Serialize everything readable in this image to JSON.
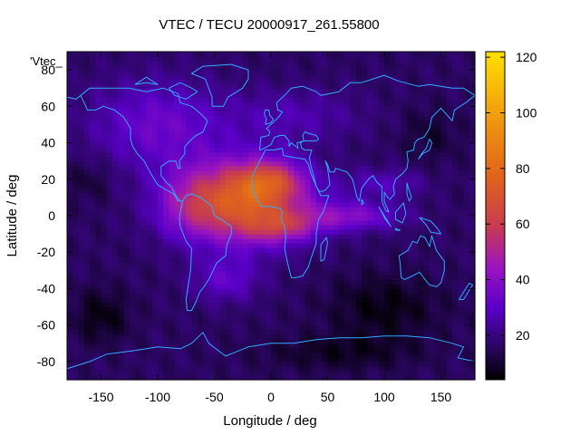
{
  "chart_data": {
    "type": "heatmap",
    "title": "VTEC / TECU 20000917_261.55800",
    "xlabel": "Longitude / deg",
    "ylabel": "Latitude / deg",
    "series_label": "'Vtec_",
    "xlim": [
      -180,
      180
    ],
    "ylim": [
      -90,
      90
    ],
    "x_ticks": [
      -150,
      -100,
      -50,
      0,
      50,
      100,
      150
    ],
    "y_ticks": [
      -80,
      -60,
      -40,
      -20,
      0,
      20,
      40,
      60,
      80
    ],
    "colorbar": {
      "range": [
        4,
        122
      ],
      "ticks": [
        20,
        40,
        60,
        80,
        100,
        120
      ],
      "palette": [
        "#000000",
        "#2a0660",
        "#5a00c8",
        "#9a14c0",
        "#c83c50",
        "#e0641a",
        "#f09a10",
        "#ffe000"
      ],
      "palette_positions": [
        0,
        0.1,
        0.22,
        0.34,
        0.47,
        0.62,
        0.8,
        1.0
      ]
    },
    "grid": {
      "lon_step": 5,
      "lat_step": 2.5
    },
    "coastline_color": "#33aaff",
    "field_model": {
      "base": 16,
      "anomalies": [
        {
          "lon": -25,
          "lat": 8,
          "dlon": 55,
          "dlat": 22,
          "amp": 58
        },
        {
          "lon": 0,
          "lat": 20,
          "dlon": 28,
          "dlat": 10,
          "amp": 25
        },
        {
          "lon": 10,
          "lat": -6,
          "dlon": 30,
          "dlat": 8,
          "amp": 20
        },
        {
          "lon": 70,
          "lat": 0,
          "dlon": 45,
          "dlat": 8,
          "amp": 22
        },
        {
          "lon": 100,
          "lat": 18,
          "dlon": 35,
          "dlat": 8,
          "amp": 12
        },
        {
          "lon": -40,
          "lat": -35,
          "dlon": 30,
          "dlat": 12,
          "amp": 15
        },
        {
          "lon": -75,
          "lat": 5,
          "dlon": 30,
          "dlat": 18,
          "amp": 12
        },
        {
          "lon": -100,
          "lat": 50,
          "dlon": 60,
          "dlat": 25,
          "amp": 18
        },
        {
          "lon": 20,
          "lat": 55,
          "dlon": 60,
          "dlat": 15,
          "amp": 10
        },
        {
          "lon": 100,
          "lat": -50,
          "dlon": 50,
          "dlat": 18,
          "amp": -10
        },
        {
          "lon": -150,
          "lat": -55,
          "dlon": 25,
          "dlat": 15,
          "amp": -10
        },
        {
          "lon": 140,
          "lat": 45,
          "dlon": 25,
          "dlat": 15,
          "amp": -6
        },
        {
          "lon": -160,
          "lat": 20,
          "dlon": 20,
          "dlat": 12,
          "amp": -6
        },
        {
          "lon": 60,
          "lat": -75,
          "dlon": 70,
          "dlat": 10,
          "amp": -8
        }
      ]
    },
    "coastlines": [
      [
        [
          -168,
          66
        ],
        [
          -160,
          70
        ],
        [
          -140,
          70
        ],
        [
          -125,
          70
        ],
        [
          -110,
          68
        ],
        [
          -95,
          70
        ],
        [
          -82,
          67
        ],
        [
          -80,
          62
        ],
        [
          -70,
          60
        ],
        [
          -62,
          56
        ],
        [
          -56,
          52
        ],
        [
          -60,
          46
        ],
        [
          -66,
          44
        ],
        [
          -70,
          42
        ],
        [
          -76,
          38
        ],
        [
          -76,
          34
        ],
        [
          -81,
          30
        ],
        [
          -80,
          26
        ],
        [
          -82,
          26
        ],
        [
          -84,
          30
        ],
        [
          -90,
          30
        ],
        [
          -97,
          27
        ],
        [
          -97,
          22
        ],
        [
          -92,
          18
        ],
        [
          -88,
          16
        ],
        [
          -84,
          11
        ],
        [
          -80,
          8
        ],
        [
          -78,
          8
        ],
        [
          -82,
          8
        ],
        [
          -86,
          12
        ],
        [
          -92,
          14
        ],
        [
          -100,
          17
        ],
        [
          -106,
          23
        ],
        [
          -112,
          30
        ],
        [
          -118,
          34
        ],
        [
          -122,
          38
        ],
        [
          -124,
          42
        ],
        [
          -124,
          48
        ],
        [
          -130,
          54
        ],
        [
          -138,
          58
        ],
        [
          -148,
          60
        ],
        [
          -155,
          58
        ],
        [
          -162,
          58
        ],
        [
          -165,
          62
        ],
        [
          -168,
          66
        ]
      ],
      [
        [
          -78,
          8
        ],
        [
          -75,
          11
        ],
        [
          -70,
          12
        ],
        [
          -62,
          10
        ],
        [
          -52,
          5
        ],
        [
          -50,
          0
        ],
        [
          -44,
          -2
        ],
        [
          -35,
          -6
        ],
        [
          -35,
          -10
        ],
        [
          -39,
          -16
        ],
        [
          -40,
          -22
        ],
        [
          -48,
          -26
        ],
        [
          -54,
          -34
        ],
        [
          -58,
          -38
        ],
        [
          -63,
          -42
        ],
        [
          -66,
          -47
        ],
        [
          -70,
          -52
        ],
        [
          -74,
          -52
        ],
        [
          -75,
          -46
        ],
        [
          -73,
          -38
        ],
        [
          -71,
          -30
        ],
        [
          -70,
          -18
        ],
        [
          -75,
          -14
        ],
        [
          -80,
          -6
        ],
        [
          -81,
          -2
        ],
        [
          -80,
          2
        ],
        [
          -78,
          8
        ]
      ],
      [
        [
          -17,
          21
        ],
        [
          -16,
          15
        ],
        [
          -13,
          9
        ],
        [
          -8,
          5
        ],
        [
          0,
          5
        ],
        [
          8,
          4
        ],
        [
          10,
          2
        ],
        [
          9,
          -2
        ],
        [
          12,
          -6
        ],
        [
          13,
          -12
        ],
        [
          12,
          -18
        ],
        [
          15,
          -27
        ],
        [
          18,
          -34
        ],
        [
          22,
          -34
        ],
        [
          28,
          -33
        ],
        [
          33,
          -28
        ],
        [
          35,
          -24
        ],
        [
          40,
          -15
        ],
        [
          40,
          -10
        ],
        [
          42,
          -2
        ],
        [
          46,
          2
        ],
        [
          51,
          11
        ],
        [
          44,
          11
        ],
        [
          40,
          16
        ],
        [
          36,
          22
        ],
        [
          33,
          28
        ],
        [
          30,
          31
        ],
        [
          20,
          32
        ],
        [
          11,
          33
        ],
        [
          10,
          37
        ],
        [
          2,
          36
        ],
        [
          -5,
          36
        ],
        [
          -10,
          30
        ],
        [
          -17,
          21
        ]
      ],
      [
        [
          -10,
          36
        ],
        [
          -9,
          43
        ],
        [
          -2,
          44
        ],
        [
          -1,
          46
        ],
        [
          -4,
          48
        ],
        [
          0,
          50
        ],
        [
          5,
          53
        ],
        [
          8,
          55
        ],
        [
          10,
          57
        ],
        [
          6,
          58
        ],
        [
          5,
          62
        ],
        [
          12,
          66
        ],
        [
          18,
          70
        ],
        [
          28,
          71
        ],
        [
          40,
          68
        ],
        [
          44,
          66
        ],
        [
          60,
          68
        ],
        [
          70,
          73
        ],
        [
          80,
          73
        ],
        [
          100,
          77
        ],
        [
          112,
          74
        ],
        [
          130,
          71
        ],
        [
          140,
          72
        ],
        [
          160,
          70
        ],
        [
          170,
          70
        ],
        [
          180,
          66
        ],
        [
          172,
          62
        ],
        [
          162,
          58
        ],
        [
          160,
          52
        ],
        [
          150,
          59
        ],
        [
          142,
          54
        ],
        [
          140,
          48
        ],
        [
          135,
          43
        ],
        [
          130,
          42
        ],
        [
          127,
          40
        ],
        [
          126,
          36
        ],
        [
          120,
          35
        ],
        [
          121,
          30
        ],
        [
          120,
          26
        ],
        [
          116,
          23
        ],
        [
          110,
          20
        ],
        [
          108,
          16
        ],
        [
          109,
          12
        ],
        [
          105,
          9
        ],
        [
          103,
          10
        ],
        [
          100,
          13
        ],
        [
          100,
          8
        ],
        [
          104,
          2
        ],
        [
          101,
          3
        ],
        [
          98,
          8
        ],
        [
          98,
          16
        ],
        [
          94,
          18
        ],
        [
          90,
          22
        ],
        [
          86,
          20
        ],
        [
          80,
          15
        ],
        [
          78,
          8
        ],
        [
          76,
          10
        ],
        [
          72,
          20
        ],
        [
          67,
          24
        ],
        [
          62,
          25
        ],
        [
          57,
          26
        ],
        [
          56,
          24
        ],
        [
          52,
          24
        ],
        [
          50,
          28
        ],
        [
          48,
          30
        ],
        [
          50,
          26
        ],
        [
          52,
          17
        ],
        [
          48,
          14
        ],
        [
          43,
          13
        ],
        [
          40,
          16
        ],
        [
          35,
          28
        ],
        [
          34,
          32
        ],
        [
          36,
          36
        ],
        [
          30,
          36
        ],
        [
          27,
          37
        ],
        [
          26,
          40
        ],
        [
          29,
          41
        ],
        [
          36,
          41
        ],
        [
          40,
          41
        ],
        [
          42,
          42
        ],
        [
          40,
          44
        ],
        [
          34,
          45
        ],
        [
          30,
          46
        ],
        [
          28,
          44
        ],
        [
          29,
          41
        ],
        [
          23,
          40
        ],
        [
          24,
          37
        ],
        [
          20,
          39
        ],
        [
          18,
          40
        ],
        [
          16,
          38
        ],
        [
          16,
          41
        ],
        [
          12,
          44
        ],
        [
          8,
          44
        ],
        [
          3,
          43
        ],
        [
          0,
          39
        ],
        [
          -6,
          37
        ],
        [
          -10,
          36
        ]
      ],
      [
        [
          -5,
          50
        ],
        [
          0,
          51
        ],
        [
          2,
          53
        ],
        [
          -1,
          55
        ],
        [
          -2,
          58
        ],
        [
          -5,
          58
        ],
        [
          -6,
          56
        ],
        [
          -4,
          53
        ],
        [
          -5,
          50
        ]
      ],
      [
        [
          113,
          -22
        ],
        [
          114,
          -26
        ],
        [
          115,
          -34
        ],
        [
          118,
          -35
        ],
        [
          125,
          -33
        ],
        [
          131,
          -31
        ],
        [
          136,
          -35
        ],
        [
          140,
          -38
        ],
        [
          146,
          -39
        ],
        [
          150,
          -37
        ],
        [
          153,
          -30
        ],
        [
          153,
          -25
        ],
        [
          146,
          -19
        ],
        [
          142,
          -11
        ],
        [
          140,
          -17
        ],
        [
          136,
          -12
        ],
        [
          132,
          -11
        ],
        [
          129,
          -15
        ],
        [
          125,
          -14
        ],
        [
          121,
          -19
        ],
        [
          113,
          -22
        ]
      ],
      [
        [
          -52,
          60
        ],
        [
          -42,
          60
        ],
        [
          -38,
          65
        ],
        [
          -25,
          70
        ],
        [
          -20,
          75
        ],
        [
          -20,
          80
        ],
        [
          -35,
          83
        ],
        [
          -60,
          82
        ],
        [
          -70,
          78
        ],
        [
          -58,
          75
        ],
        [
          -55,
          70
        ],
        [
          -52,
          65
        ],
        [
          -52,
          60
        ]
      ],
      [
        [
          130,
          31
        ],
        [
          134,
          34
        ],
        [
          140,
          36
        ],
        [
          142,
          40
        ],
        [
          140,
          42
        ],
        [
          137,
          37
        ],
        [
          133,
          34
        ],
        [
          130,
          31
        ]
      ],
      [
        [
          95,
          5
        ],
        [
          102,
          -2
        ],
        [
          106,
          -6
        ],
        [
          101,
          -2
        ],
        [
          95,
          5
        ]
      ],
      [
        [
          110,
          -8
        ],
        [
          114,
          -8
        ],
        [
          110,
          -7
        ],
        [
          110,
          -8
        ]
      ],
      [
        [
          110,
          2
        ],
        [
          117,
          7
        ],
        [
          119,
          1
        ],
        [
          116,
          -4
        ],
        [
          110,
          -2
        ],
        [
          110,
          2
        ]
      ],
      [
        [
          131,
          -1
        ],
        [
          141,
          -3
        ],
        [
          147,
          -7
        ],
        [
          150,
          -10
        ],
        [
          141,
          -9
        ],
        [
          137,
          -5
        ],
        [
          131,
          -1
        ]
      ],
      [
        [
          44,
          -25
        ],
        [
          47,
          -24
        ],
        [
          50,
          -15
        ],
        [
          49,
          -12
        ],
        [
          44,
          -16
        ],
        [
          44,
          -25
        ]
      ],
      [
        [
          -60,
          -64
        ],
        [
          -55,
          -70
        ],
        [
          -40,
          -77
        ],
        [
          -20,
          -72
        ],
        [
          0,
          -70
        ],
        [
          20,
          -70
        ],
        [
          40,
          -68
        ],
        [
          60,
          -67
        ],
        [
          80,
          -67
        ],
        [
          100,
          -66
        ],
        [
          120,
          -66
        ],
        [
          140,
          -67
        ],
        [
          160,
          -70
        ],
        [
          170,
          -72
        ],
        [
          165,
          -78
        ],
        [
          180,
          -80
        ],
        [
          180,
          -90
        ],
        [
          -180,
          -90
        ],
        [
          -180,
          -84
        ],
        [
          -160,
          -80
        ],
        [
          -145,
          -76
        ],
        [
          -120,
          -74
        ],
        [
          -100,
          -72
        ],
        [
          -80,
          -73
        ],
        [
          -70,
          -70
        ],
        [
          -60,
          -64
        ]
      ],
      [
        [
          -180,
          65
        ],
        [
          -172,
          64
        ],
        [
          -168,
          66
        ]
      ],
      [
        [
          -80,
          73
        ],
        [
          -70,
          70
        ],
        [
          -65,
          68
        ],
        [
          -75,
          64
        ],
        [
          -85,
          66
        ],
        [
          -90,
          70
        ],
        [
          -80,
          73
        ]
      ],
      [
        [
          -120,
          72
        ],
        [
          -110,
          73
        ],
        [
          -100,
          72
        ],
        [
          -110,
          76
        ],
        [
          -120,
          72
        ]
      ],
      [
        [
          166,
          -46
        ],
        [
          172,
          -40
        ],
        [
          175,
          -37
        ],
        [
          178,
          -38
        ],
        [
          174,
          -42
        ],
        [
          170,
          -46
        ],
        [
          166,
          -46
        ]
      ],
      [
        [
          80,
          9
        ],
        [
          82,
          7
        ],
        [
          80,
          6
        ],
        [
          80,
          9
        ]
      ],
      [
        [
          120,
          18
        ],
        [
          122,
          14
        ],
        [
          124,
          10
        ],
        [
          122,
          8
        ],
        [
          120,
          12
        ],
        [
          120,
          18
        ]
      ]
    ]
  }
}
